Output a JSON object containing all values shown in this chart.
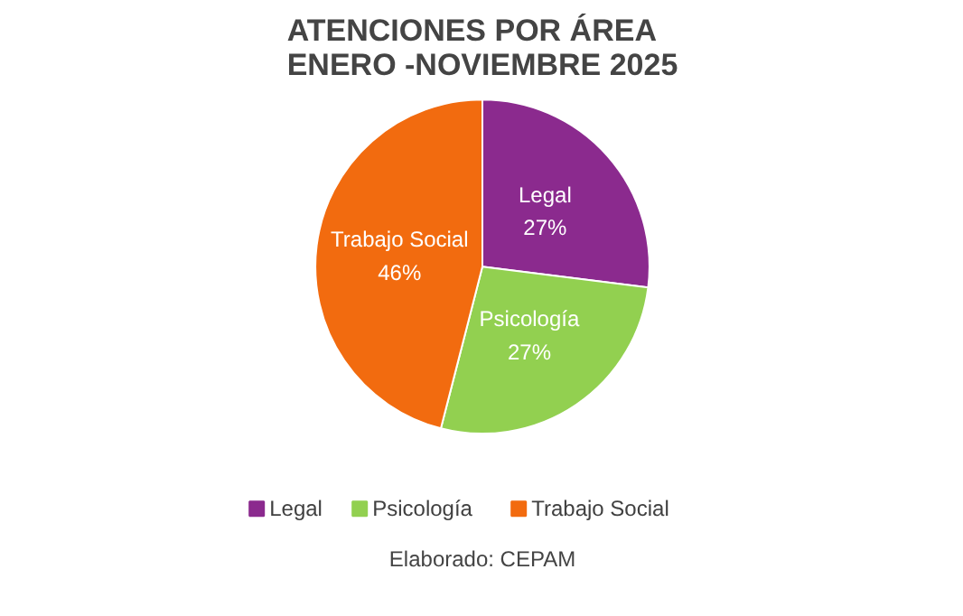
{
  "chart_data": {
    "type": "pie",
    "title": "ATENCIONES POR ÁREA\nENERO -NOVIEMBRE 2025",
    "categories": [
      "Legal",
      "Psicología",
      "Trabajo Social"
    ],
    "values": [
      27,
      27,
      46
    ],
    "colors": [
      "#8b2a8e",
      "#92d050",
      "#f26b0f"
    ],
    "value_labels": [
      "27%",
      "27%",
      "46%"
    ],
    "legend": "bottom",
    "annotations": [
      "Elaborado: CEPAM"
    ]
  }
}
